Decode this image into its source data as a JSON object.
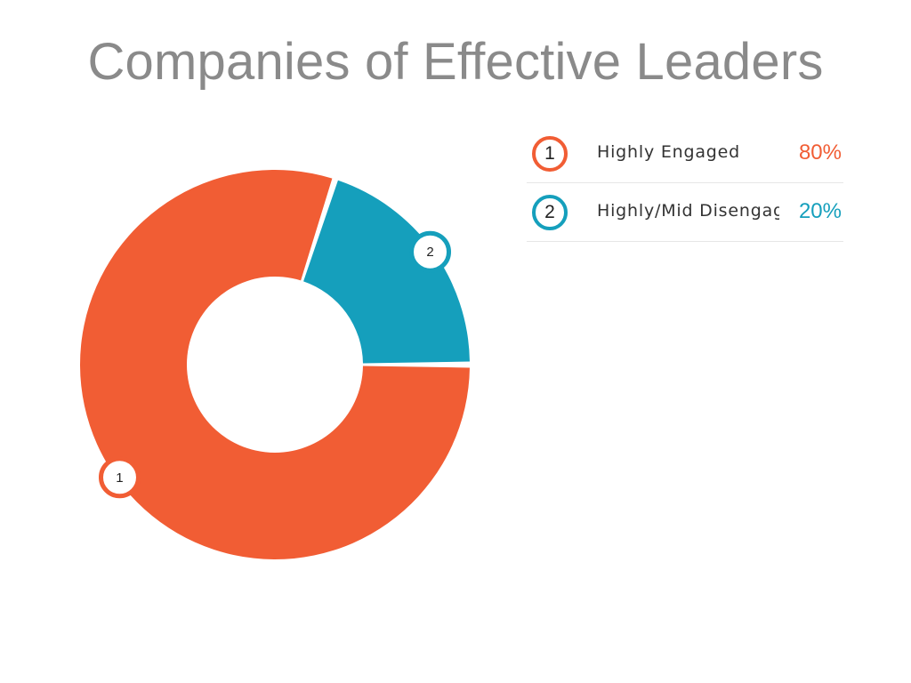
{
  "chart_data": {
    "type": "pie",
    "title": "Companies of Effective Leaders",
    "series": [
      {
        "values": [
          80,
          20
        ],
        "categories": [
          "1",
          "2"
        ]
      }
    ],
    "slices": [
      {
        "badge": "1",
        "label": "Highly Engaged",
        "value": 80,
        "value_label": "80%",
        "color": "#f15d34"
      },
      {
        "badge": "2",
        "label": "Highly/Mid Disengaged",
        "value": 20,
        "value_label": "20%",
        "color": "#159fbc"
      }
    ]
  }
}
